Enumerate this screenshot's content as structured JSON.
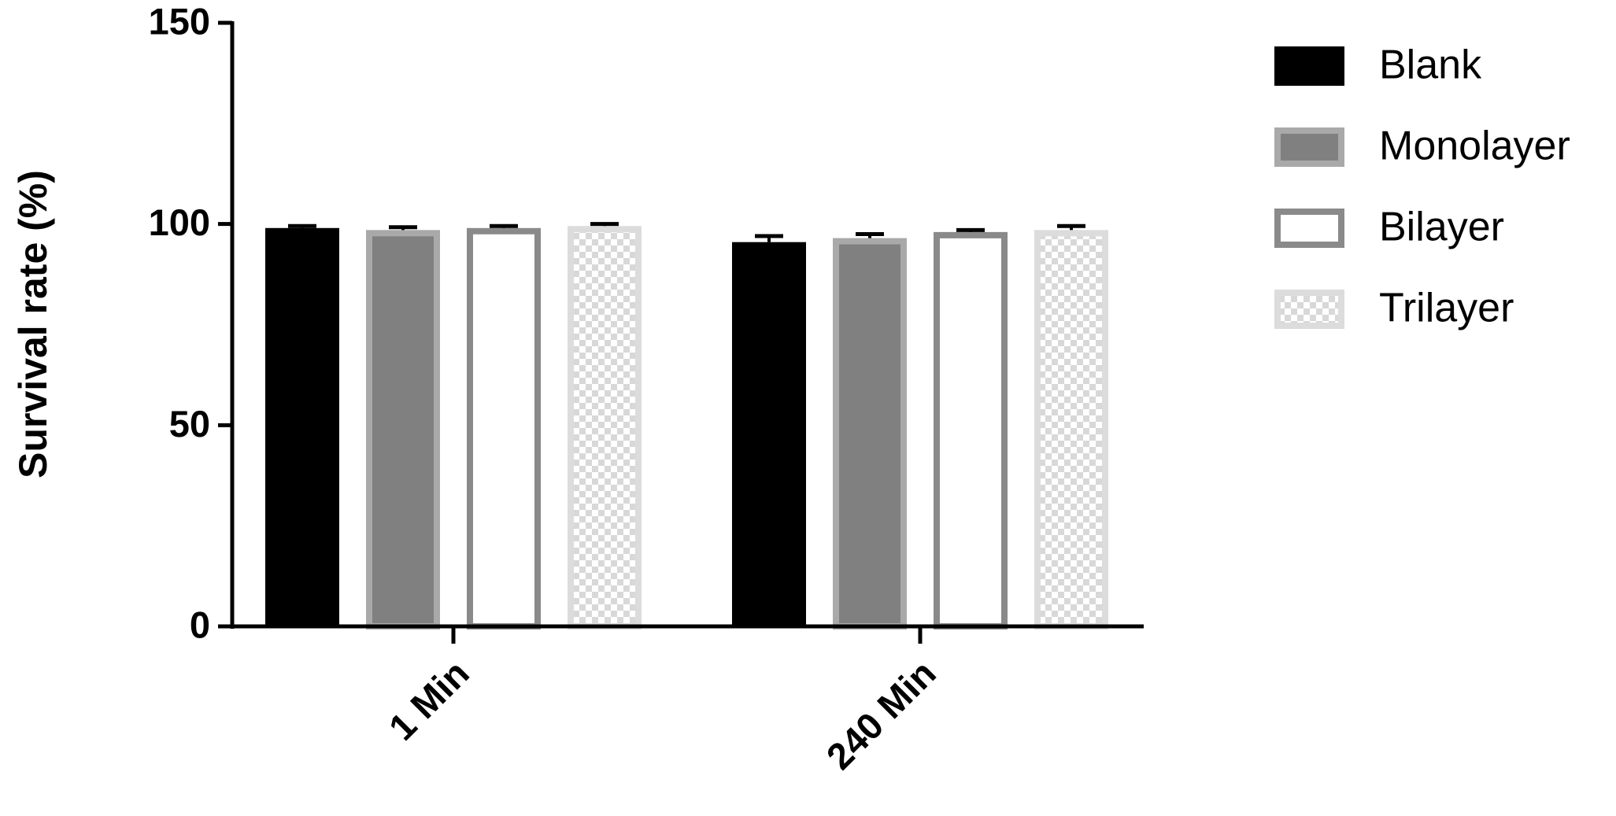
{
  "chart_data": {
    "type": "bar",
    "ylabel": "Survival rate (%)",
    "categories": [
      "1 Min",
      "240 Min"
    ],
    "series": [
      {
        "name": "Blank",
        "color": "#000000",
        "edgecolor": "#000000",
        "values": [
          99,
          95.5
        ],
        "errors": [
          0.5,
          1.5
        ]
      },
      {
        "name": "Monolayer",
        "color": "#808080",
        "edgecolor": "#a9a9a9",
        "values": [
          98.5,
          96.5
        ],
        "errors": [
          0.7,
          1
        ]
      },
      {
        "name": "Bilayer",
        "color": "#ffffff",
        "edgecolor": "#8a8a8a",
        "values": [
          99,
          98
        ],
        "errors": [
          0.5,
          0.5
        ]
      },
      {
        "name": "Trilayer",
        "color": "#e6e6e6",
        "edgecolor": "#dcdcdc",
        "pattern": "checker",
        "values": [
          99.5,
          98.5
        ],
        "errors": [
          0.5,
          1
        ]
      }
    ],
    "ylim": [
      0,
      150
    ],
    "yticks": [
      0,
      50,
      100,
      150
    ],
    "legend": "right"
  }
}
